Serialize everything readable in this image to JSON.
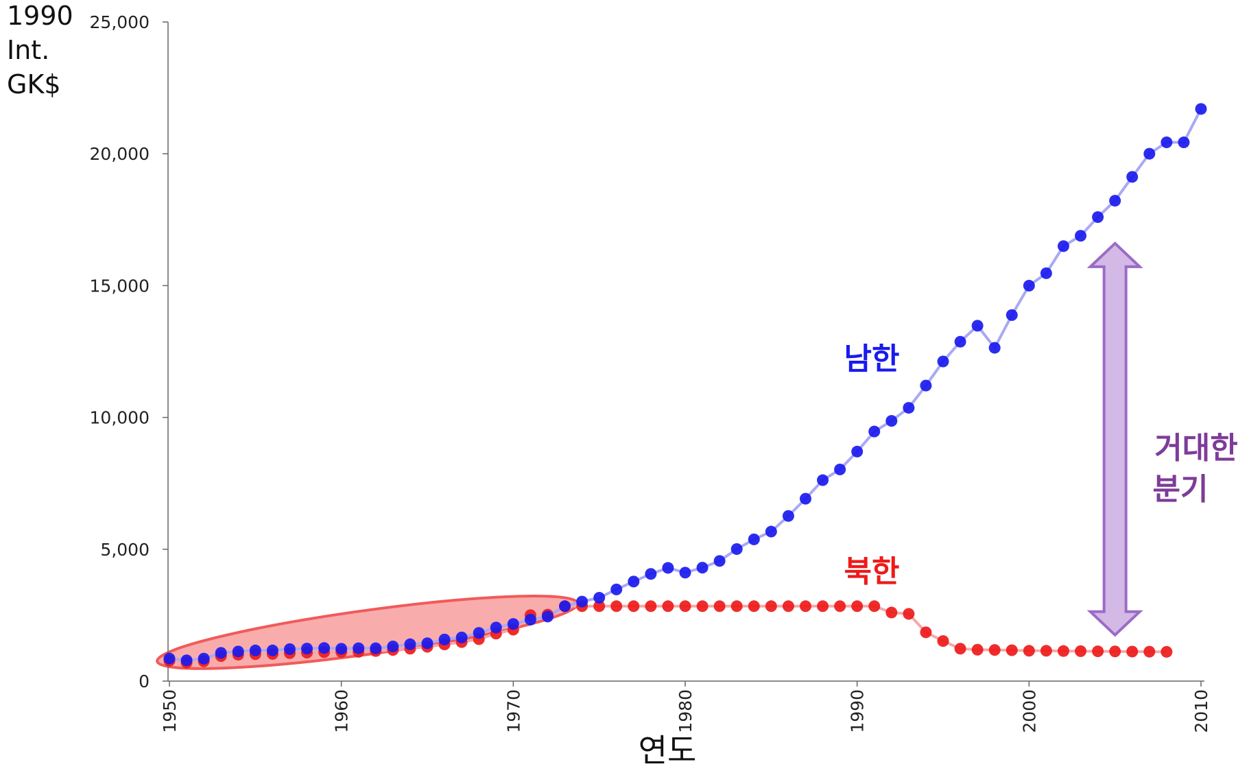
{
  "chart_data": {
    "type": "line",
    "ylabel_lines": [
      "1990",
      "Int.",
      "GK$"
    ],
    "xlabel": "연도",
    "xlim": [
      1950,
      2010
    ],
    "ylim": [
      0,
      25000
    ],
    "y_ticks": [
      0,
      5000,
      10000,
      15000,
      20000,
      25000
    ],
    "y_tick_labels": [
      "0",
      "5,000",
      "10,000",
      "15,000",
      "20,000",
      "25,000"
    ],
    "x_ticks": [
      1950,
      1960,
      1970,
      1980,
      1990,
      2000,
      2010
    ],
    "x_tick_labels": [
      "1950",
      "1960",
      "1970",
      "1980",
      "1990",
      "2000",
      "2010"
    ],
    "grid": false,
    "series": [
      {
        "name": "남한",
        "color": "#1a1aee",
        "line_color": "#a9a9f5",
        "x": [
          1950,
          1951,
          1952,
          1953,
          1954,
          1955,
          1956,
          1957,
          1958,
          1959,
          1960,
          1961,
          1962,
          1963,
          1964,
          1965,
          1966,
          1967,
          1968,
          1969,
          1970,
          1971,
          1972,
          1973,
          1974,
          1975,
          1976,
          1977,
          1978,
          1979,
          1980,
          1981,
          1982,
          1983,
          1984,
          1985,
          1986,
          1987,
          1988,
          1989,
          1990,
          1991,
          1992,
          1993,
          1994,
          1995,
          1996,
          1997,
          1998,
          1999,
          2000,
          2001,
          2002,
          2003,
          2004,
          2005,
          2006,
          2007,
          2008,
          2009,
          2010
        ],
        "values": [
          854,
          786,
          853,
          1070,
          1123,
          1163,
          1163,
          1212,
          1232,
          1254,
          1226,
          1247,
          1245,
          1315,
          1397,
          1433,
          1577,
          1655,
          1828,
          2032,
          2167,
          2331,
          2449,
          2841,
          3015,
          3162,
          3476,
          3775,
          4064,
          4294,
          4114,
          4302,
          4557,
          5007,
          5375,
          5670,
          6263,
          6916,
          7621,
          8027,
          8704,
          9465,
          9870,
          10365,
          11209,
          12122,
          12872,
          13479,
          12641,
          13881,
          14998,
          15470,
          16497,
          16891,
          17598,
          18221,
          19123,
          20003,
          20434,
          20433,
          21701
        ]
      },
      {
        "name": "북한",
        "color": "#ee1a1a",
        "line_color": "#f5a9a9",
        "x": [
          1950,
          1951,
          1952,
          1953,
          1954,
          1955,
          1956,
          1957,
          1958,
          1959,
          1960,
          1961,
          1962,
          1963,
          1964,
          1965,
          1966,
          1967,
          1968,
          1969,
          1970,
          1971,
          1972,
          1973,
          1974,
          1975,
          1976,
          1977,
          1978,
          1979,
          1980,
          1981,
          1982,
          1983,
          1984,
          1985,
          1986,
          1987,
          1988,
          1989,
          1990,
          1991,
          1992,
          1993,
          1994,
          1995,
          1996,
          1997,
          1998,
          1999,
          2000,
          2001,
          2002,
          2003,
          2004,
          2005,
          2006,
          2007,
          2008
        ],
        "values": [
          770,
          700,
          750,
          950,
          1000,
          1020,
          1030,
          1060,
          1080,
          1100,
          1105,
          1110,
          1140,
          1180,
          1230,
          1300,
          1390,
          1480,
          1590,
          1800,
          1950,
          2500,
          2520,
          2841,
          2841,
          2841,
          2841,
          2841,
          2841,
          2841,
          2841,
          2841,
          2841,
          2841,
          2841,
          2841,
          2841,
          2841,
          2841,
          2841,
          2841,
          2841,
          2600,
          2550,
          1850,
          1520,
          1230,
          1190,
          1180,
          1170,
          1150,
          1150,
          1140,
          1135,
          1130,
          1125,
          1120,
          1115,
          1110
        ]
      }
    ],
    "annotations": [
      {
        "name": "south-label",
        "text": "남한",
        "color": "#1a1aee"
      },
      {
        "name": "north-label",
        "text": "북한",
        "color": "#ee1a1a"
      },
      {
        "name": "divergence-label",
        "lines": [
          "거대한",
          "분기"
        ],
        "color": "#7d3c98"
      }
    ],
    "highlight": {
      "from_year": 1950,
      "to_year": 1973,
      "color": "#f15a5a"
    },
    "divergence_arrow": {
      "year": 2005,
      "from_value": 2841,
      "to_value": 16497,
      "fill": "#d2b9e6",
      "stroke": "#9b6bc6"
    }
  }
}
